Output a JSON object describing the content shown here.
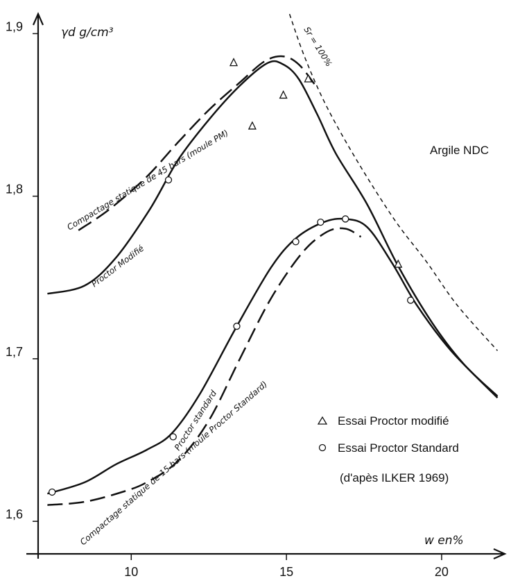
{
  "chart_data": {
    "type": "line",
    "ylabel": "γd g/cm³",
    "xlabel": "w en%",
    "xlim": [
      7,
      21.9
    ],
    "ylim": [
      1.58,
      1.91
    ],
    "x_ticks": [
      {
        "value": 10,
        "label": "10"
      },
      {
        "value": 15,
        "label": "15"
      },
      {
        "value": 20,
        "label": "20"
      }
    ],
    "y_ticks": [
      {
        "value": 1.6,
        "label": "1,6"
      },
      {
        "value": 1.7,
        "label": "1,7"
      },
      {
        "value": 1.8,
        "label": "1,8"
      },
      {
        "value": 1.9,
        "label": "1,9"
      }
    ],
    "annotations": {
      "material": "Argile NDC",
      "source": "(d'apès ILKER 1969)"
    },
    "series": [
      {
        "name": "Proctor Modifié",
        "style": "solid",
        "points": [
          [
            7.3,
            1.74
          ],
          [
            8.5,
            1.745
          ],
          [
            9.5,
            1.762
          ],
          [
            10.6,
            1.792
          ],
          [
            11.5,
            1.822
          ],
          [
            12.5,
            1.847
          ],
          [
            13.5,
            1.868
          ],
          [
            14.4,
            1.882
          ],
          [
            14.9,
            1.881
          ],
          [
            15.4,
            1.872
          ],
          [
            16,
            1.85
          ],
          [
            16.6,
            1.826
          ],
          [
            17.6,
            1.795
          ],
          [
            18.6,
            1.757
          ],
          [
            19.7,
            1.722
          ],
          [
            20.7,
            1.697
          ],
          [
            21.8,
            1.677
          ]
        ]
      },
      {
        "name": "Compactage statique de 45 bars (moule PM)",
        "style": "dashed",
        "points": [
          [
            8.3,
            1.779
          ],
          [
            9.3,
            1.792
          ],
          [
            10.5,
            1.812
          ],
          [
            11.5,
            1.833
          ],
          [
            12.5,
            1.853
          ],
          [
            13.5,
            1.87
          ],
          [
            14.3,
            1.883
          ],
          [
            14.9,
            1.886
          ],
          [
            15.4,
            1.881
          ],
          [
            15.9,
            1.869
          ]
        ]
      },
      {
        "name": "Proctor standard",
        "style": "solid",
        "points": [
          [
            7.3,
            1.617
          ],
          [
            8.5,
            1.624
          ],
          [
            9.5,
            1.635
          ],
          [
            10.5,
            1.644
          ],
          [
            11.3,
            1.654
          ],
          [
            12.2,
            1.678
          ],
          [
            13.4,
            1.72
          ],
          [
            14.5,
            1.756
          ],
          [
            15.3,
            1.774
          ],
          [
            16.2,
            1.784
          ],
          [
            16.9,
            1.786
          ],
          [
            17.6,
            1.781
          ],
          [
            18.4,
            1.759
          ],
          [
            19.2,
            1.733
          ],
          [
            20.3,
            1.705
          ],
          [
            21.8,
            1.676
          ]
        ]
      },
      {
        "name": "Compactage statique de 15 bars (moule Proctor Standard)",
        "style": "dashed",
        "points": [
          [
            7.3,
            1.61
          ],
          [
            8.5,
            1.612
          ],
          [
            9.7,
            1.618
          ],
          [
            10.5,
            1.624
          ],
          [
            11.5,
            1.637
          ],
          [
            12.5,
            1.662
          ],
          [
            13.5,
            1.7
          ],
          [
            14.5,
            1.737
          ],
          [
            15.5,
            1.765
          ],
          [
            16.3,
            1.778
          ],
          [
            16.9,
            1.78
          ],
          [
            17.4,
            1.775
          ]
        ]
      },
      {
        "name": "Sr = 100%",
        "style": "dotted",
        "points": [
          [
            15.1,
            1.912
          ],
          [
            15.6,
            1.885
          ],
          [
            16.3,
            1.855
          ],
          [
            17.3,
            1.821
          ],
          [
            18.5,
            1.785
          ],
          [
            19.5,
            1.76
          ],
          [
            20.5,
            1.733
          ],
          [
            21.8,
            1.705
          ]
        ]
      }
    ],
    "markers": [
      {
        "name": "Essai Proctor modifié",
        "shape": "triangle",
        "points": [
          [
            13.3,
            1.882
          ],
          [
            13.9,
            1.843
          ],
          [
            14.9,
            1.862
          ],
          [
            15.7,
            1.872
          ],
          [
            18.6,
            1.758
          ]
        ]
      },
      {
        "name": "Essai Proctor Standard",
        "shape": "circle",
        "points": [
          [
            7.45,
            1.618
          ],
          [
            11.35,
            1.652
          ],
          [
            13.4,
            1.72
          ],
          [
            15.3,
            1.772
          ],
          [
            16.1,
            1.784
          ],
          [
            16.9,
            1.786
          ],
          [
            19,
            1.736
          ],
          [
            11.2,
            1.81
          ]
        ]
      }
    ],
    "curve_labels": [
      {
        "series": "Compactage statique de 45 bars (moule PM)",
        "text": "Compactage statique de 45 bars (moule PM)"
      },
      {
        "series": "Proctor Modifié",
        "text": "Proctor Modifié"
      },
      {
        "series": "Proctor standard",
        "text": "Proctor standard"
      },
      {
        "series": "Compactage statique de 15 bars (moule Proctor Standard)",
        "text": "Compactage statique de 15 bars (moule Proctor Standard)"
      },
      {
        "series": "Sr = 100%",
        "text": "Sr = 100%"
      }
    ],
    "legend": {
      "placement": "bottom-right",
      "entries": [
        {
          "symbol": "triangle",
          "label": "Essai Proctor modifié"
        },
        {
          "symbol": "circle",
          "label": "Essai Proctor Standard"
        }
      ]
    }
  }
}
